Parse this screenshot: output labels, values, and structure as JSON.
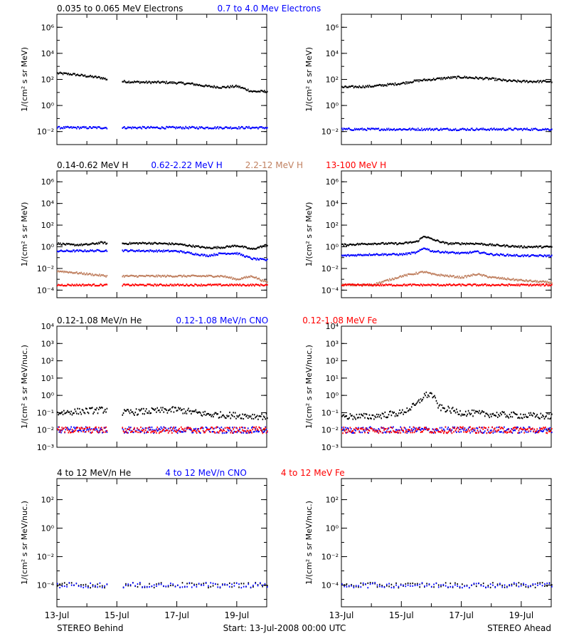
{
  "colors": {
    "black": "#000000",
    "blue": "#0000ff",
    "tan": "#c08060",
    "red": "#ff0000"
  },
  "footer": {
    "left_caption": "STEREO Behind",
    "center_caption": "Start: 13-Jul-2008 00:00 UTC",
    "right_caption": "STEREO Ahead"
  },
  "chart_data": [
    {
      "id": "electrons",
      "type": "scatter",
      "yscale": "log",
      "ylabel": "1/(cm² s sr MeV)",
      "ylim": [
        0.001,
        10000000
      ],
      "yticks": [
        "10⁶",
        "10⁴",
        "10²",
        "10⁰",
        "10⁻²"
      ],
      "xlim": [
        "13-Jul-2008",
        "20-Jul-2008"
      ],
      "data_gap": [
        "14-Jul-2008 16:00",
        "15-Jul-2008 04:00"
      ],
      "legend": [
        {
          "text": "0.035 to 0.065 MeV Electrons",
          "color": "#000000"
        },
        {
          "text": "0.7 to 4.0 Mev Electrons",
          "color": "#0000ff"
        }
      ],
      "panels": {
        "behind": {
          "series": [
            {
              "color": "#000000",
              "x": [
                "13-Jul 00:00",
                "13-Jul 12:00",
                "14-Jul 00:00",
                "14-Jul 12:00",
                "14-Jul 16:00",
                "15-Jul 04:00",
                "15-Jul 12:00",
                "16-Jul 00:00",
                "16-Jul 12:00",
                "17-Jul 00:00",
                "17-Jul 12:00",
                "18-Jul 00:00",
                "18-Jul 12:00",
                "19-Jul 00:00",
                "19-Jul 12:00",
                "20-Jul 00:00"
              ],
              "y": [
                300,
                250,
                180,
                130,
                100,
                70,
                65,
                60,
                60,
                55,
                45,
                30,
                25,
                30,
                12,
                12
              ]
            },
            {
              "color": "#0000ff",
              "x": [
                "13-Jul 00:00",
                "14-Jul 16:00",
                "15-Jul 04:00",
                "20-Jul 00:00"
              ],
              "y": [
                0.02,
                0.02,
                0.02,
                0.02
              ]
            }
          ]
        },
        "ahead": {
          "series": [
            {
              "color": "#000000",
              "x": [
                "13-Jul 00:00",
                "14-Jul 00:00",
                "15-Jul 00:00",
                "15-Jul 12:00",
                "16-Jul 00:00",
                "16-Jul 12:00",
                "17-Jul 00:00",
                "18-Jul 00:00",
                "18-Jul 12:00",
                "19-Jul 00:00",
                "20-Jul 00:00"
              ],
              "y": [
                25,
                30,
                50,
                80,
                100,
                130,
                150,
                110,
                80,
                70,
                70
              ]
            },
            {
              "color": "#0000ff",
              "x": [
                "13-Jul 00:00",
                "20-Jul 00:00"
              ],
              "y": [
                0.015,
                0.015
              ]
            }
          ]
        }
      }
    },
    {
      "id": "protons",
      "type": "scatter",
      "yscale": "log",
      "ylabel": "1/(cm² s sr MeV)",
      "ylim": [
        2e-05,
        10000000
      ],
      "yticks": [
        "10⁶",
        "10⁴",
        "10²",
        "10⁰",
        "10⁻²",
        "10⁻⁴"
      ],
      "xlim": [
        "13-Jul-2008",
        "20-Jul-2008"
      ],
      "data_gap": [
        "14-Jul-2008 16:00",
        "15-Jul-2008 04:00"
      ],
      "legend": [
        {
          "text": "0.14-0.62 MeV H",
          "color": "#000000"
        },
        {
          "text": "0.62-2.22 MeV H",
          "color": "#0000ff"
        },
        {
          "text": "2.2-12 MeV H",
          "color": "#c08060"
        },
        {
          "text": "13-100 MeV H",
          "color": "#ff0000"
        }
      ],
      "panels": {
        "behind": {
          "series": [
            {
              "color": "#000000",
              "x": [
                "13-Jul 00:00",
                "13-Jul 12:00",
                "14-Jul 00:00",
                "14-Jul 12:00",
                "14-Jul 16:00",
                "15-Jul 04:00",
                "16-Jul 00:00",
                "17-Jul 00:00",
                "18-Jul 00:00",
                "18-Jul 12:00",
                "19-Jul 00:00",
                "19-Jul 12:00",
                "20-Jul 00:00"
              ],
              "y": [
                2,
                1.5,
                1.6,
                2.5,
                2,
                2,
                2.2,
                1.8,
                0.8,
                0.9,
                1.3,
                0.6,
                1.5
              ]
            },
            {
              "color": "#0000ff",
              "x": [
                "13-Jul 00:00",
                "14-Jul 16:00",
                "15-Jul 04:00",
                "17-Jul 00:00",
                "18-Jul 00:00",
                "18-Jul 12:00",
                "19-Jul 00:00",
                "19-Jul 12:00",
                "20-Jul 00:00"
              ],
              "y": [
                0.4,
                0.45,
                0.45,
                0.4,
                0.15,
                0.25,
                0.25,
                0.08,
                0.06
              ]
            },
            {
              "color": "#c08060",
              "x": [
                "13-Jul 00:00",
                "14-Jul 16:00",
                "15-Jul 04:00",
                "17-Jul 00:00",
                "18-Jul 00:00",
                "18-Jul 12:00",
                "19-Jul 00:00",
                "19-Jul 12:00",
                "20-Jul 00:00"
              ],
              "y": [
                0.006,
                0.002,
                0.002,
                0.002,
                0.002,
                0.002,
                0.001,
                0.002,
                0.0005
              ]
            },
            {
              "color": "#ff0000",
              "x": [
                "13-Jul 00:00",
                "20-Jul 00:00"
              ],
              "y": [
                0.0003,
                0.0003
              ]
            }
          ]
        },
        "ahead": {
          "series": [
            {
              "color": "#000000",
              "x": [
                "13-Jul 00:00",
                "14-Jul 00:00",
                "15-Jul 00:00",
                "15-Jul 12:00",
                "15-Jul 18:00",
                "16-Jul 00:00",
                "16-Jul 12:00",
                "17-Jul 00:00",
                "17-Jul 12:00",
                "18-Jul 00:00",
                "19-Jul 00:00",
                "20-Jul 00:00"
              ],
              "y": [
                1.5,
                2,
                2,
                3,
                10,
                5,
                2,
                2,
                2,
                1.5,
                1,
                1
              ]
            },
            {
              "color": "#0000ff",
              "x": [
                "13-Jul 00:00",
                "14-Jul 00:00",
                "15-Jul 00:00",
                "15-Jul 12:00",
                "15-Jul 18:00",
                "16-Jul 00:00",
                "17-Jul 00:00",
                "17-Jul 12:00",
                "18-Jul 00:00",
                "19-Jul 00:00",
                "20-Jul 00:00"
              ],
              "y": [
                0.15,
                0.2,
                0.2,
                0.3,
                0.8,
                0.4,
                0.25,
                0.35,
                0.2,
                0.15,
                0.15
              ]
            },
            {
              "color": "#c08060",
              "x": [
                "13-Jul 00:00",
                "14-Jul 00:00",
                "15-Jul 00:00",
                "15-Jul 18:00",
                "16-Jul 00:00",
                "17-Jul 00:00",
                "17-Jul 12:00",
                "18-Jul 00:00",
                "19-Jul 00:00",
                "20-Jul 00:00"
              ],
              "y": [
                0.0003,
                0.0003,
                0.002,
                0.005,
                0.003,
                0.0015,
                0.003,
                0.0015,
                0.0008,
                0.0005
              ]
            },
            {
              "color": "#ff0000",
              "x": [
                "13-Jul 00:00",
                "20-Jul 00:00"
              ],
              "y": [
                0.0003,
                0.0003
              ]
            }
          ]
        }
      }
    },
    {
      "id": "heavy-ions-low",
      "type": "scatter",
      "yscale": "log",
      "ylabel": "1/(cm² s sr MeV/nuc.)",
      "ylim": [
        0.001,
        10000
      ],
      "yticks": [
        "10⁴",
        "10³",
        "10²",
        "10¹",
        "10⁰",
        "10⁻¹",
        "10⁻²",
        "10⁻³"
      ],
      "xlim": [
        "13-Jul-2008",
        "20-Jul-2008"
      ],
      "data_gap": [
        "14-Jul-2008 16:00",
        "15-Jul-2008 04:00"
      ],
      "legend": [
        {
          "text": "0.12-1.08 MeV/n He",
          "color": "#000000"
        },
        {
          "text": "0.12-1.08 MeV/n CNO",
          "color": "#0000ff"
        },
        {
          "text": "0.12-1.08 MeV Fe",
          "color": "#ff0000"
        }
      ],
      "panels": {
        "behind": {
          "series": [
            {
              "color": "#000000",
              "x": [
                "13-Jul 00:00",
                "14-Jul 16:00",
                "15-Jul 04:00",
                "17-Jul 00:00",
                "18-Jul 00:00",
                "20-Jul 00:00"
              ],
              "y": [
                0.1,
                0.15,
                0.1,
                0.15,
                0.08,
                0.06
              ]
            },
            {
              "color": "#0000ff",
              "x": [
                "13-Jul 00:00",
                "20-Jul 00:00"
              ],
              "y": [
                0.01,
                0.01
              ]
            },
            {
              "color": "#ff0000",
              "x": [
                "13-Jul 00:00",
                "20-Jul 00:00"
              ],
              "y": [
                0.01,
                0.01
              ]
            }
          ]
        },
        "ahead": {
          "series": [
            {
              "color": "#000000",
              "x": [
                "13-Jul 00:00",
                "14-Jul 00:00",
                "15-Jul 00:00",
                "15-Jul 12:00",
                "15-Jul 18:00",
                "16-Jul 00:00",
                "16-Jul 06:00",
                "17-Jul 00:00",
                "18-Jul 00:00",
                "20-Jul 00:00"
              ],
              "y": [
                0.06,
                0.06,
                0.1,
                0.3,
                1,
                1.2,
                0.2,
                0.1,
                0.08,
                0.06
              ]
            },
            {
              "color": "#0000ff",
              "x": [
                "13-Jul 00:00",
                "20-Jul 00:00"
              ],
              "y": [
                0.01,
                0.01
              ]
            },
            {
              "color": "#ff0000",
              "x": [
                "13-Jul 00:00",
                "20-Jul 00:00"
              ],
              "y": [
                0.01,
                0.01
              ]
            }
          ]
        }
      }
    },
    {
      "id": "heavy-ions-high",
      "type": "scatter",
      "yscale": "log",
      "ylabel": "1/(cm² s sr MeV/nuc.)",
      "ylim": [
        3e-06,
        3000
      ],
      "yticks": [
        "10²",
        "10⁰",
        "10⁻²",
        "10⁻⁴"
      ],
      "xlim": [
        "13-Jul-2008",
        "20-Jul-2008"
      ],
      "xticks": [
        "13-Jul",
        "15-Jul",
        "17-Jul",
        "19-Jul"
      ],
      "data_gap": [
        "14-Jul-2008 16:00",
        "15-Jul-2008 04:00"
      ],
      "legend": [
        {
          "text": "4 to 12 MeV/n He",
          "color": "#000000"
        },
        {
          "text": "4 to 12 MeV/n CNO",
          "color": "#0000ff"
        },
        {
          "text": "4 to 12 MeV Fe",
          "color": "#ff0000"
        }
      ],
      "panels": {
        "behind": {
          "series": [
            {
              "color": "#000000",
              "x": [
                "13-Jul 00:00",
                "20-Jul 00:00"
              ],
              "y": [
                0.0001,
                0.0001
              ]
            },
            {
              "color": "#0000ff",
              "x": [
                "13-Jul 00:00",
                "20-Jul 00:00"
              ],
              "y": [
                0.0001,
                0.0001
              ]
            }
          ]
        },
        "ahead": {
          "series": [
            {
              "color": "#000000",
              "x": [
                "13-Jul 00:00",
                "20-Jul 00:00"
              ],
              "y": [
                0.0001,
                0.0001
              ]
            },
            {
              "color": "#0000ff",
              "x": [
                "13-Jul 00:00",
                "20-Jul 00:00"
              ],
              "y": [
                0.0001,
                0.0001
              ]
            }
          ]
        }
      }
    }
  ]
}
